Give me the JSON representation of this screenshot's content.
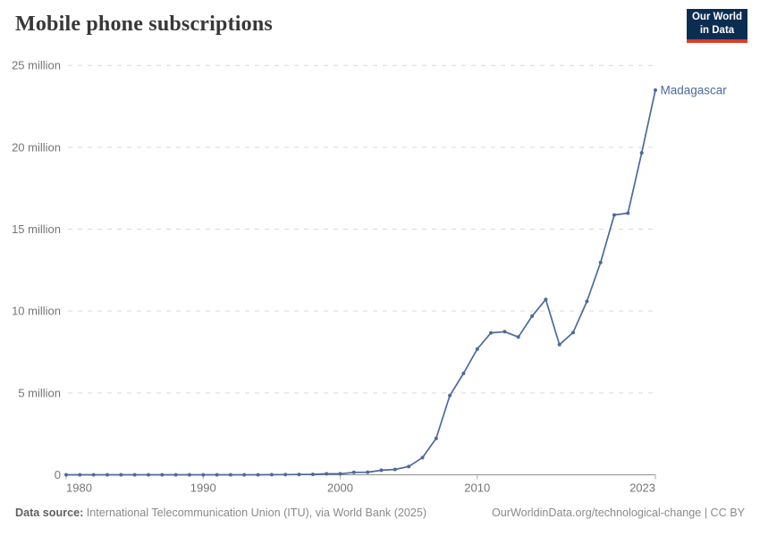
{
  "header": {
    "title": "Mobile phone subscriptions",
    "logo": {
      "line1": "Our World",
      "line2": "in Data"
    }
  },
  "chart_data": {
    "type": "line",
    "title": "Mobile phone subscriptions",
    "entity_label": "Madagascar",
    "values_unit": "millions of subscriptions",
    "xlim": [
      1980,
      2023
    ],
    "ylim_millions": [
      0,
      25
    ],
    "grid": "horizontal-dashed",
    "legend_position": "end-of-line-label",
    "x_ticks": [
      {
        "year": 1980,
        "label": "1980",
        "align": "start"
      },
      {
        "year": 1990,
        "label": "1990",
        "align": "middle"
      },
      {
        "year": 2000,
        "label": "2000",
        "align": "middle"
      },
      {
        "year": 2010,
        "label": "2010",
        "align": "middle"
      },
      {
        "year": 2023,
        "label": "2023",
        "align": "end"
      }
    ],
    "y_ticks": [
      {
        "value": 0,
        "label": "0"
      },
      {
        "value": 5,
        "label": "5 million"
      },
      {
        "value": 10,
        "label": "10 million"
      },
      {
        "value": 15,
        "label": "15 million"
      },
      {
        "value": 20,
        "label": "20 million"
      },
      {
        "value": 25,
        "label": "25 million"
      }
    ],
    "x": [
      1980,
      1981,
      1982,
      1983,
      1984,
      1985,
      1986,
      1987,
      1988,
      1989,
      1990,
      1991,
      1992,
      1993,
      1994,
      1995,
      1996,
      1997,
      1998,
      1999,
      2000,
      2001,
      2002,
      2003,
      2004,
      2005,
      2006,
      2007,
      2008,
      2009,
      2010,
      2011,
      2012,
      2013,
      2014,
      2015,
      2016,
      2017,
      2018,
      2019,
      2020,
      2021,
      2022,
      2023
    ],
    "series": [
      {
        "name": "Madagascar",
        "color": "#4c6a9c",
        "values_millions": [
          0,
          0,
          0,
          0,
          0,
          0,
          0,
          0,
          0,
          0,
          0,
          0,
          0,
          0,
          0.002,
          0.004,
          0.009,
          0.02,
          0.03,
          0.06,
          0.06,
          0.15,
          0.16,
          0.28,
          0.33,
          0.51,
          1.05,
          2.22,
          4.84,
          6.19,
          7.68,
          8.67,
          8.74,
          8.41,
          9.69,
          10.71,
          7.95,
          8.69,
          10.59,
          12.96,
          15.87,
          15.98,
          19.66,
          23.49
        ]
      }
    ]
  },
  "footer": {
    "source_label": "Data source:",
    "source_text": " International Telecommunication Union (ITU), via World Bank (2025)",
    "link_text": "OurWorldinData.org/technological-change | CC BY"
  },
  "colors": {
    "line": "#4c6a9c",
    "gridline": "#dadada",
    "axis_line": "#8f8f8f",
    "tick_mark": "#ababab",
    "axis_text": "#757575",
    "title_text": "#373737",
    "footer_text": "#8a8a8a",
    "logo_bg": "#0c2d52",
    "logo_red": "#dc3a24"
  }
}
